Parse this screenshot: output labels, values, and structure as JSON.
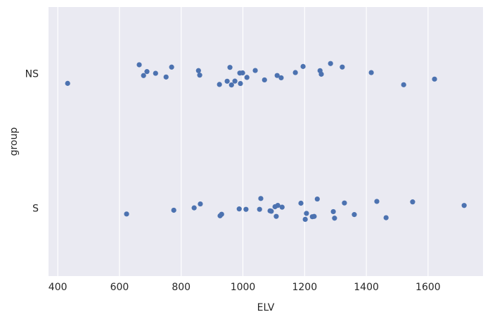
{
  "chart_data": {
    "type": "strip",
    "x_label": "ELV",
    "y_label": "group",
    "categories": [
      "NS",
      "S"
    ],
    "values": [
      [
        432,
        664,
        678,
        689,
        717,
        751,
        769,
        856,
        860,
        924,
        949,
        958,
        963,
        974,
        990,
        992,
        999,
        1013,
        1040,
        1070,
        1111,
        1124,
        1170,
        1195,
        1250,
        1254,
        1284,
        1322,
        1416,
        1521,
        1621
      ],
      [
        623,
        776,
        842,
        862,
        926,
        931,
        988,
        1010,
        1054,
        1058,
        1088,
        1092,
        1104,
        1108,
        1113,
        1127,
        1188,
        1202,
        1206,
        1225,
        1231,
        1241,
        1293,
        1297,
        1329,
        1361,
        1434,
        1464,
        1550,
        1717
      ]
    ],
    "color": "#4c72b0",
    "xlim": [
      370,
      1778
    ],
    "xticks": [
      400,
      600,
      800,
      1000,
      1200,
      1400,
      1600
    ],
    "grid": true
  }
}
